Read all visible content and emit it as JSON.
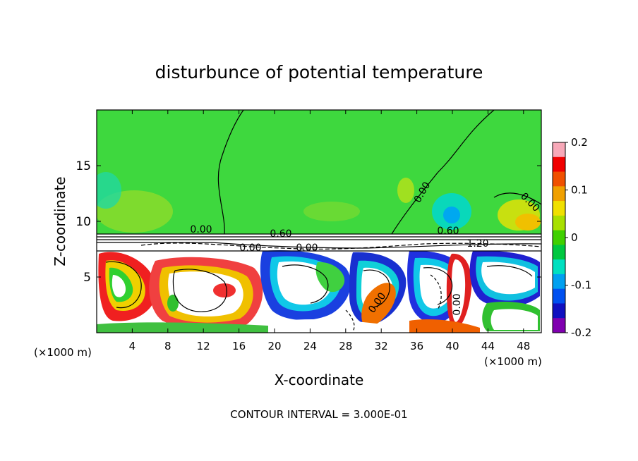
{
  "chart_data": {
    "type": "heatmap",
    "title": "disturbunce of potential temperature",
    "xlabel": "X-coordinate",
    "ylabel": "Z-coordinate",
    "x_unit_left": "(×1000 m)",
    "x_unit_right": "(×1000 m)",
    "footer": "CONTOUR INTERVAL = 3.000E-01",
    "xlim": [
      0,
      50
    ],
    "ylim": [
      0,
      20
    ],
    "x_ticks": [
      "4",
      "8",
      "12",
      "16",
      "20",
      "24",
      "28",
      "32",
      "36",
      "40",
      "44",
      "48"
    ],
    "y_ticks": [
      "5",
      "10",
      "15"
    ],
    "colorbar": {
      "range": [
        -0.2,
        0.2
      ],
      "tick_labels": [
        "0.2",
        "0.1",
        "0",
        "-0.1",
        "-0.2"
      ],
      "colors": [
        "#f7a8b8",
        "#f00000",
        "#f05000",
        "#f0a000",
        "#f0e000",
        "#a8e000",
        "#40d000",
        "#00c840",
        "#00e0c0",
        "#00a0f0",
        "#0050f0",
        "#1010c0",
        "#8000b0"
      ]
    },
    "contour_labels": [
      "0.00",
      "0.60",
      "0.00",
      "0.00",
      "0.60",
      "1.20",
      "0.00",
      "0.00",
      "0.00",
      "0.00",
      "0.00"
    ]
  }
}
